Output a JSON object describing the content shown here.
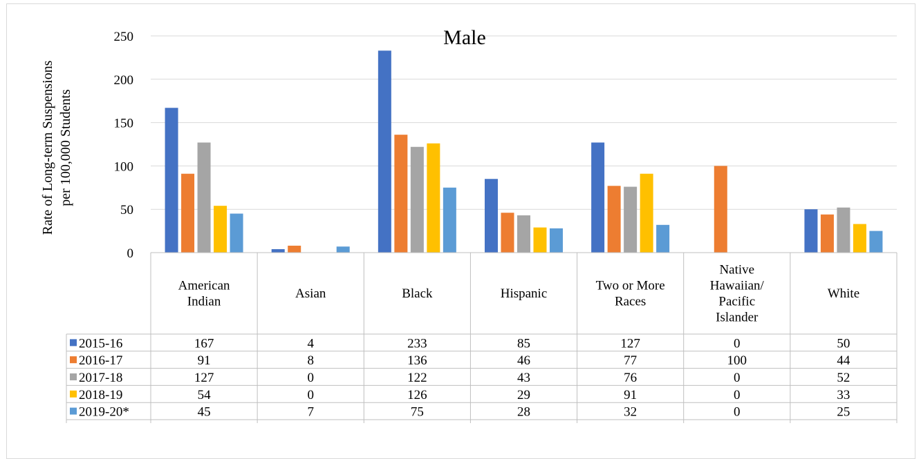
{
  "chart_data": {
    "type": "bar",
    "title": "Male",
    "ylabel": "Rate of Long-term Suspensions per 100,000 Students",
    "ylabel_lines": [
      "Rate of Long-term Suspensions",
      "per 100,000 Students"
    ],
    "ylim": [
      0,
      250
    ],
    "yticks": [
      0,
      50,
      100,
      150,
      200,
      250
    ],
    "grid": true,
    "legend_placement": "table-rows",
    "categories": [
      "American Indian",
      "Asian",
      "Black",
      "Hispanic",
      "Two or More Races",
      "Native Hawaiian/ Pacific Islander",
      "White"
    ],
    "category_lines": [
      [
        "American",
        "Indian"
      ],
      [
        "Asian"
      ],
      [
        "Black"
      ],
      [
        "Hispanic"
      ],
      [
        "Two or More",
        "Races"
      ],
      [
        "Native",
        "Hawaiian/",
        "Pacific",
        "Islander"
      ],
      [
        "White"
      ]
    ],
    "series": [
      {
        "name": "2015-16",
        "color": "#4472C4",
        "values": [
          167,
          4,
          233,
          85,
          127,
          0,
          50
        ]
      },
      {
        "name": "2016-17",
        "color": "#ED7D31",
        "values": [
          91,
          8,
          136,
          46,
          77,
          100,
          44
        ]
      },
      {
        "name": "2017-18",
        "color": "#A5A5A5",
        "values": [
          127,
          0,
          122,
          43,
          76,
          0,
          52
        ]
      },
      {
        "name": "2018-19",
        "color": "#FFC000",
        "values": [
          54,
          0,
          126,
          29,
          91,
          0,
          33
        ]
      },
      {
        "name": "2019-20*",
        "color": "#5B9BD5",
        "values": [
          45,
          7,
          75,
          28,
          32,
          0,
          25
        ]
      }
    ]
  }
}
